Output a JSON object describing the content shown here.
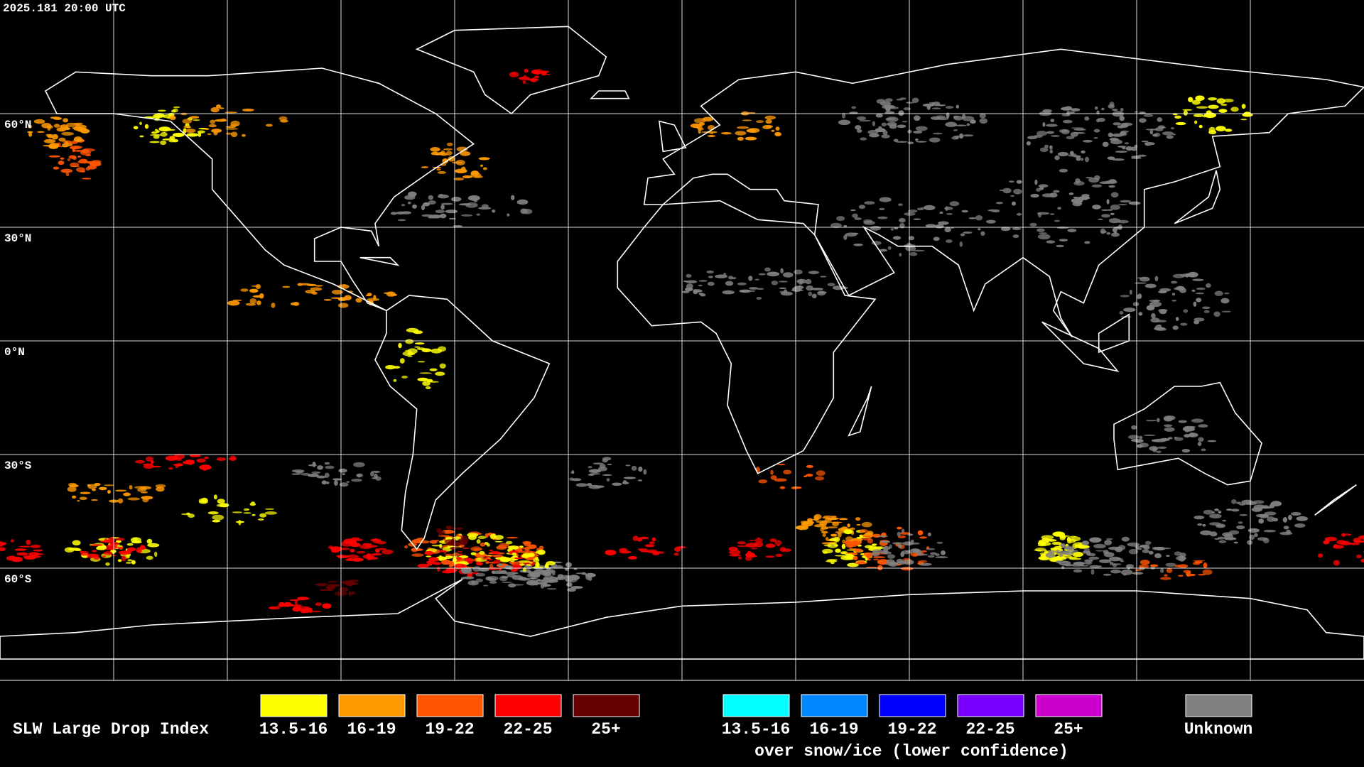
{
  "timestamp": "2025.181 20:00 UTC",
  "latitude_labels": [
    "60°N",
    "30°N",
    "0°N",
    "30°S",
    "60°S"
  ],
  "legend": {
    "title": "SLW Large Drop Index",
    "items": [
      {
        "label": "13.5-16",
        "color": "#ffff00"
      },
      {
        "label": "16-19",
        "color": "#ff9900"
      },
      {
        "label": "19-22",
        "color": "#ff5500"
      },
      {
        "label": "22-25",
        "color": "#ff0000"
      },
      {
        "label": "25+",
        "color": "#660000"
      }
    ],
    "snow_items": [
      {
        "label": "13.5-16",
        "color": "#00ffff"
      },
      {
        "label": "16-19",
        "color": "#0088ff"
      },
      {
        "label": "19-22",
        "color": "#0000ff"
      },
      {
        "label": "22-25",
        "color": "#7700ff"
      },
      {
        "label": "25+",
        "color": "#cc00cc"
      }
    ],
    "snow_caption": "over snow/ice (lower confidence)",
    "unknown": {
      "label": "Unknown",
      "color": "#808080"
    }
  }
}
